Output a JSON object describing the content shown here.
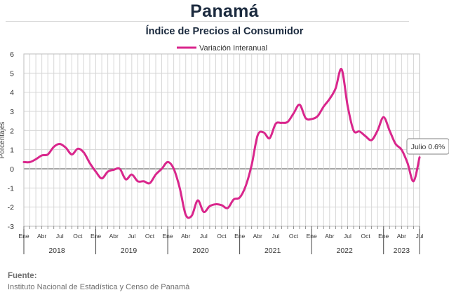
{
  "header": {
    "title": "Panamá",
    "subtitle": "Índice de Precios al Consumidor"
  },
  "footer": {
    "source_label": "Fuente:",
    "source_text": "Instituto Nacional de Estadística y Censo de Panamá"
  },
  "colors": {
    "series": "#d9268c",
    "zero_line": "#888888",
    "grid": "#d6d6d6",
    "callout_border": "#9a9a9a"
  },
  "chart_data": {
    "type": "line",
    "title": "Índice de Precios al Consumidor",
    "ylabel": "Porcentajes",
    "ylim": [
      -3,
      6
    ],
    "y_ticks": [
      6,
      5,
      4,
      3,
      2,
      1,
      0,
      -1,
      -2,
      -3
    ],
    "grid": true,
    "legend_position": "top-center",
    "month_labels": [
      "Ene",
      "Abr",
      "Jul",
      "Oct"
    ],
    "month_labels_last_year": [
      "Ene",
      "Abr",
      "Jul"
    ],
    "years": [
      "2018",
      "2019",
      "2020",
      "2021",
      "2022",
      "2023"
    ],
    "callout": "Julio 0.6%",
    "series": [
      {
        "name": "Variación Interanual",
        "start": "2018-01",
        "end": "2023-07",
        "values": [
          0.35,
          0.35,
          0.5,
          0.7,
          0.75,
          1.15,
          1.3,
          1.1,
          0.75,
          1.05,
          0.85,
          0.3,
          -0.15,
          -0.5,
          -0.15,
          -0.05,
          0.0,
          -0.55,
          -0.3,
          -0.65,
          -0.65,
          -0.75,
          -0.3,
          0.0,
          0.35,
          0.0,
          -1.0,
          -2.4,
          -2.45,
          -1.65,
          -2.25,
          -1.95,
          -1.85,
          -1.9,
          -2.05,
          -1.6,
          -1.5,
          -0.9,
          0.2,
          1.75,
          1.9,
          1.6,
          2.35,
          2.4,
          2.45,
          2.9,
          3.35,
          2.65,
          2.6,
          2.75,
          3.25,
          3.65,
          4.2,
          5.2,
          3.3,
          2.0,
          1.95,
          1.7,
          1.5,
          2.0,
          2.7,
          2.0,
          1.3,
          1.0,
          0.3,
          -0.65,
          0.6
        ]
      }
    ]
  }
}
